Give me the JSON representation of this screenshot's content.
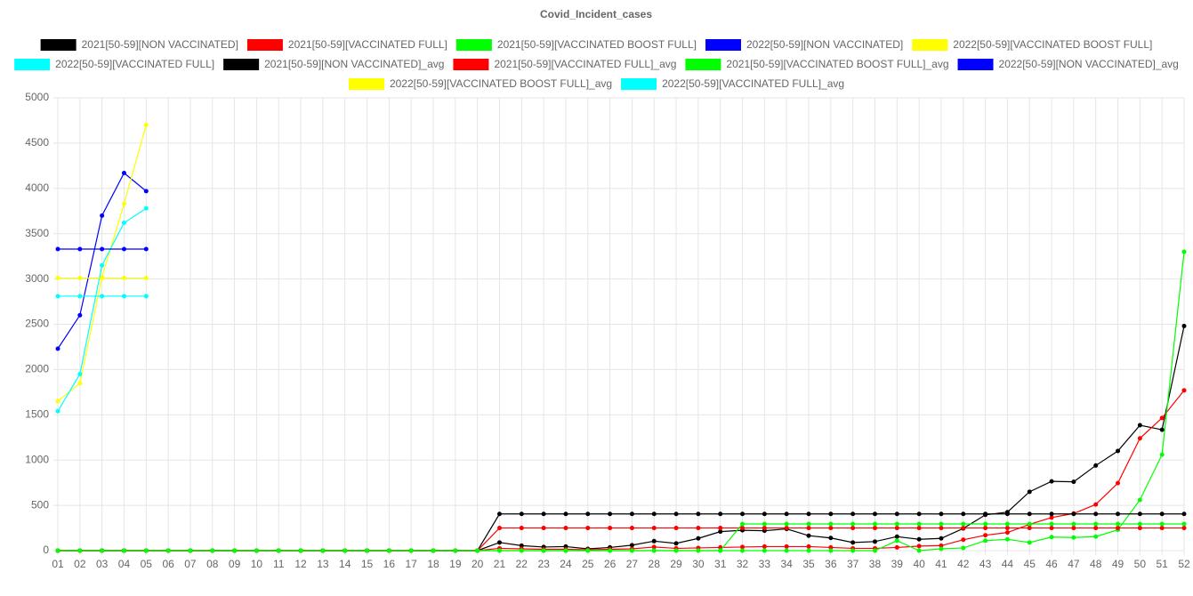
{
  "chart_data": {
    "type": "line",
    "title": "Covid_Incident_cases",
    "categories": [
      "01",
      "02",
      "03",
      "04",
      "05",
      "06",
      "07",
      "08",
      "09",
      "10",
      "11",
      "12",
      "13",
      "14",
      "15",
      "16",
      "17",
      "18",
      "19",
      "20",
      "21",
      "22",
      "23",
      "24",
      "25",
      "26",
      "27",
      "28",
      "29",
      "30",
      "31",
      "32",
      "33",
      "34",
      "35",
      "36",
      "37",
      "38",
      "39",
      "40",
      "41",
      "42",
      "43",
      "44",
      "45",
      "46",
      "47",
      "48",
      "49",
      "50",
      "51",
      "52"
    ],
    "ylim": [
      0,
      5000
    ],
    "yticks": [
      0,
      500,
      1000,
      1500,
      2000,
      2500,
      3000,
      3500,
      4000,
      4500,
      5000
    ],
    "grid": true,
    "legend": "top",
    "series": [
      {
        "name": "2021[50-59][NON VACCINATED]",
        "color": "#000000",
        "values": [
          0,
          0,
          0,
          0,
          0,
          0,
          0,
          0,
          0,
          0,
          0,
          0,
          0,
          0,
          0,
          0,
          0,
          0,
          0,
          0,
          90,
          55,
          40,
          45,
          20,
          35,
          60,
          105,
          80,
          135,
          210,
          225,
          220,
          240,
          165,
          140,
          90,
          100,
          155,
          125,
          135,
          245,
          395,
          425,
          650,
          765,
          760,
          940,
          1100,
          1385,
          1335,
          2480
        ]
      },
      {
        "name": "2021[50-59][VACCINATED FULL]",
        "color": "#ff0000",
        "values": [
          0,
          0,
          0,
          0,
          0,
          0,
          0,
          0,
          0,
          0,
          0,
          0,
          0,
          0,
          0,
          0,
          0,
          0,
          0,
          0,
          25,
          20,
          15,
          15,
          10,
          15,
          20,
          40,
          25,
          30,
          35,
          40,
          45,
          45,
          45,
          35,
          25,
          25,
          35,
          50,
          55,
          120,
          170,
          200,
          290,
          365,
          410,
          510,
          745,
          1240,
          1465,
          1770
        ]
      },
      {
        "name": "2021[50-59][VACCINATED BOOST FULL]",
        "color": "#00ff00",
        "values": [
          0,
          0,
          0,
          0,
          0,
          0,
          0,
          0,
          0,
          0,
          0,
          0,
          0,
          0,
          0,
          0,
          0,
          0,
          0,
          0,
          0,
          0,
          0,
          0,
          0,
          0,
          0,
          0,
          0,
          0,
          0,
          0,
          0,
          0,
          0,
          0,
          0,
          0,
          110,
          0,
          20,
          30,
          110,
          125,
          90,
          150,
          145,
          155,
          230,
          560,
          1060,
          3300
        ]
      },
      {
        "name": "2022[50-59][NON VACCINATED]",
        "color": "#0000ff",
        "values": [
          2230,
          2600,
          3700,
          4170,
          3970,
          null,
          null,
          null,
          null,
          null,
          null,
          null,
          null,
          null,
          null,
          null,
          null,
          null,
          null,
          null,
          null,
          null,
          null,
          null,
          null,
          null,
          null,
          null,
          null,
          null,
          null,
          null,
          null,
          null,
          null,
          null,
          null,
          null,
          null,
          null,
          null,
          null,
          null,
          null,
          null,
          null,
          null,
          null,
          null,
          null,
          null,
          null
        ]
      },
      {
        "name": "2022[50-59][VACCINATED BOOST FULL]",
        "color": "#ffff00",
        "values": [
          1650,
          1850,
          3020,
          3830,
          4700,
          null,
          null,
          null,
          null,
          null,
          null,
          null,
          null,
          null,
          null,
          null,
          null,
          null,
          null,
          null,
          null,
          null,
          null,
          null,
          null,
          null,
          null,
          null,
          null,
          null,
          null,
          null,
          null,
          null,
          null,
          null,
          null,
          null,
          null,
          null,
          null,
          null,
          null,
          null,
          null,
          null,
          null,
          null,
          null,
          null,
          null,
          null
        ]
      },
      {
        "name": "2022[50-59][VACCINATED FULL]",
        "color": "#00ffff",
        "values": [
          1540,
          1950,
          3150,
          3620,
          3780,
          null,
          null,
          null,
          null,
          null,
          null,
          null,
          null,
          null,
          null,
          null,
          null,
          null,
          null,
          null,
          null,
          null,
          null,
          null,
          null,
          null,
          null,
          null,
          null,
          null,
          null,
          null,
          null,
          null,
          null,
          null,
          null,
          null,
          null,
          null,
          null,
          null,
          null,
          null,
          null,
          null,
          null,
          null,
          null,
          null,
          null,
          null
        ]
      },
      {
        "name": "2021[50-59][NON VACCINATED]_avg",
        "color": "#000000",
        "values": [
          0,
          0,
          0,
          0,
          0,
          0,
          0,
          0,
          0,
          0,
          0,
          0,
          0,
          0,
          0,
          0,
          0,
          0,
          0,
          0,
          405,
          405,
          405,
          405,
          405,
          405,
          405,
          405,
          405,
          405,
          405,
          405,
          405,
          405,
          405,
          405,
          405,
          405,
          405,
          405,
          405,
          405,
          405,
          405,
          405,
          405,
          405,
          405,
          405,
          405,
          405,
          405
        ]
      },
      {
        "name": "2021[50-59][VACCINATED FULL]_avg",
        "color": "#ff0000",
        "values": [
          0,
          0,
          0,
          0,
          0,
          0,
          0,
          0,
          0,
          0,
          0,
          0,
          0,
          0,
          0,
          0,
          0,
          0,
          0,
          0,
          250,
          250,
          250,
          250,
          250,
          250,
          250,
          250,
          250,
          250,
          250,
          250,
          250,
          250,
          250,
          250,
          250,
          250,
          250,
          250,
          250,
          250,
          250,
          250,
          250,
          250,
          250,
          250,
          250,
          250,
          250,
          250
        ]
      },
      {
        "name": "2021[50-59][VACCINATED BOOST FULL]_avg",
        "color": "#00ff00",
        "values": [
          0,
          0,
          0,
          0,
          0,
          0,
          0,
          0,
          0,
          0,
          0,
          0,
          0,
          0,
          0,
          0,
          0,
          0,
          0,
          0,
          0,
          0,
          0,
          0,
          0,
          0,
          0,
          0,
          0,
          0,
          0,
          295,
          295,
          295,
          295,
          295,
          295,
          295,
          295,
          295,
          295,
          295,
          295,
          295,
          295,
          295,
          295,
          295,
          295,
          295,
          295,
          295
        ]
      },
      {
        "name": "2022[50-59][NON VACCINATED]_avg",
        "color": "#0000ff",
        "values": [
          3330,
          3330,
          3330,
          3330,
          3330,
          null,
          null,
          null,
          null,
          null,
          null,
          null,
          null,
          null,
          null,
          null,
          null,
          null,
          null,
          null,
          null,
          null,
          null,
          null,
          null,
          null,
          null,
          null,
          null,
          null,
          null,
          null,
          null,
          null,
          null,
          null,
          null,
          null,
          null,
          null,
          null,
          null,
          null,
          null,
          null,
          null,
          null,
          null,
          null,
          null,
          null,
          null
        ]
      },
      {
        "name": "2022[50-59][VACCINATED BOOST FULL]_avg",
        "color": "#ffff00",
        "values": [
          3010,
          3010,
          3010,
          3010,
          3010,
          null,
          null,
          null,
          null,
          null,
          null,
          null,
          null,
          null,
          null,
          null,
          null,
          null,
          null,
          null,
          null,
          null,
          null,
          null,
          null,
          null,
          null,
          null,
          null,
          null,
          null,
          null,
          null,
          null,
          null,
          null,
          null,
          null,
          null,
          null,
          null,
          null,
          null,
          null,
          null,
          null,
          null,
          null,
          null,
          null,
          null,
          null
        ]
      },
      {
        "name": "2022[50-59][VACCINATED FULL]_avg",
        "color": "#00ffff",
        "values": [
          2810,
          2810,
          2810,
          2810,
          2810,
          null,
          null,
          null,
          null,
          null,
          null,
          null,
          null,
          null,
          null,
          null,
          null,
          null,
          null,
          null,
          null,
          null,
          null,
          null,
          null,
          null,
          null,
          null,
          null,
          null,
          null,
          null,
          null,
          null,
          null,
          null,
          null,
          null,
          null,
          null,
          null,
          null,
          null,
          null,
          null,
          null,
          null,
          null,
          null,
          null,
          null,
          null
        ]
      }
    ]
  }
}
